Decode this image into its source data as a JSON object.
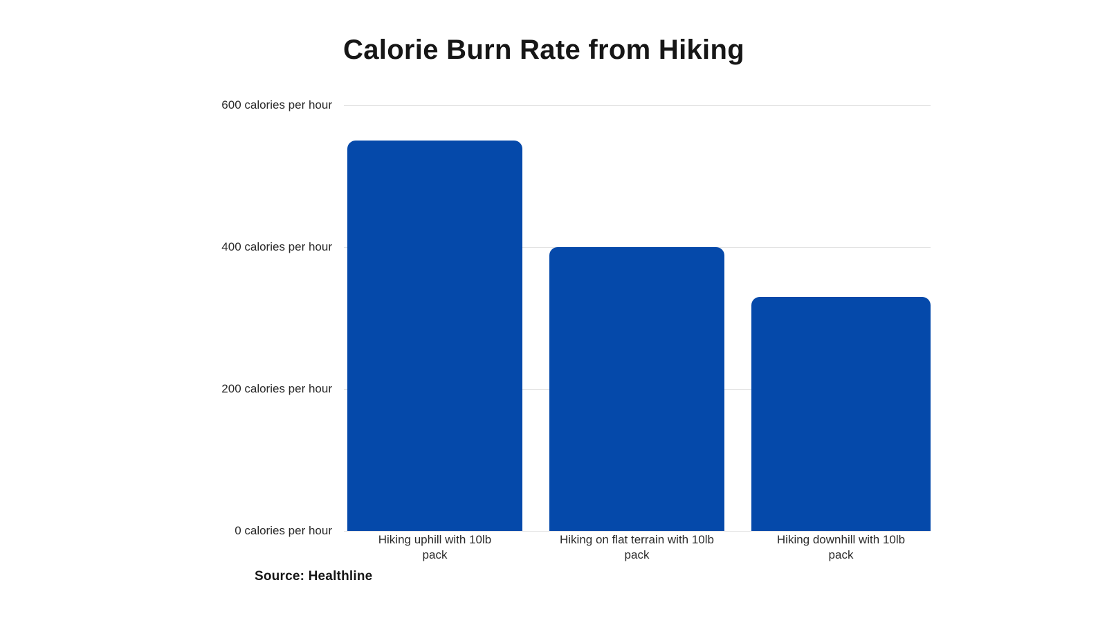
{
  "chart": {
    "title": "Calorie Burn Rate from Hiking",
    "source": "Source: Healthline",
    "colors": {
      "bar_fill": "#0549AA",
      "gridline": "#e3e3e3",
      "axis_text": "#2a2a2a",
      "title_text": "#161616",
      "background": "#ffffff"
    }
  },
  "chart_data": {
    "type": "bar",
    "title": "Calorie Burn Rate from Hiking",
    "categories": [
      "Hiking uphill with 10lb pack",
      "Hiking on flat terrain with 10lb pack",
      "Hiking downhill with 10lb pack"
    ],
    "category_lines": [
      [
        "Hiking uphill with 10lb",
        "pack"
      ],
      [
        "Hiking on flat terrain with 10lb",
        "pack"
      ],
      [
        "Hiking downhill with 10lb",
        "pack"
      ]
    ],
    "values": [
      550,
      400,
      330
    ],
    "xlabel": "",
    "ylabel": "calories per hour",
    "ylim": [
      0,
      600
    ],
    "yticks": [
      {
        "value": 600,
        "label": "600 calories per hour"
      },
      {
        "value": 400,
        "label": "400 calories per hour"
      },
      {
        "value": 200,
        "label": "200 calories per hour"
      },
      {
        "value": 0,
        "label": "0 calories per hour"
      }
    ],
    "grid": true,
    "legend": false,
    "source": "Source: Healthline"
  }
}
